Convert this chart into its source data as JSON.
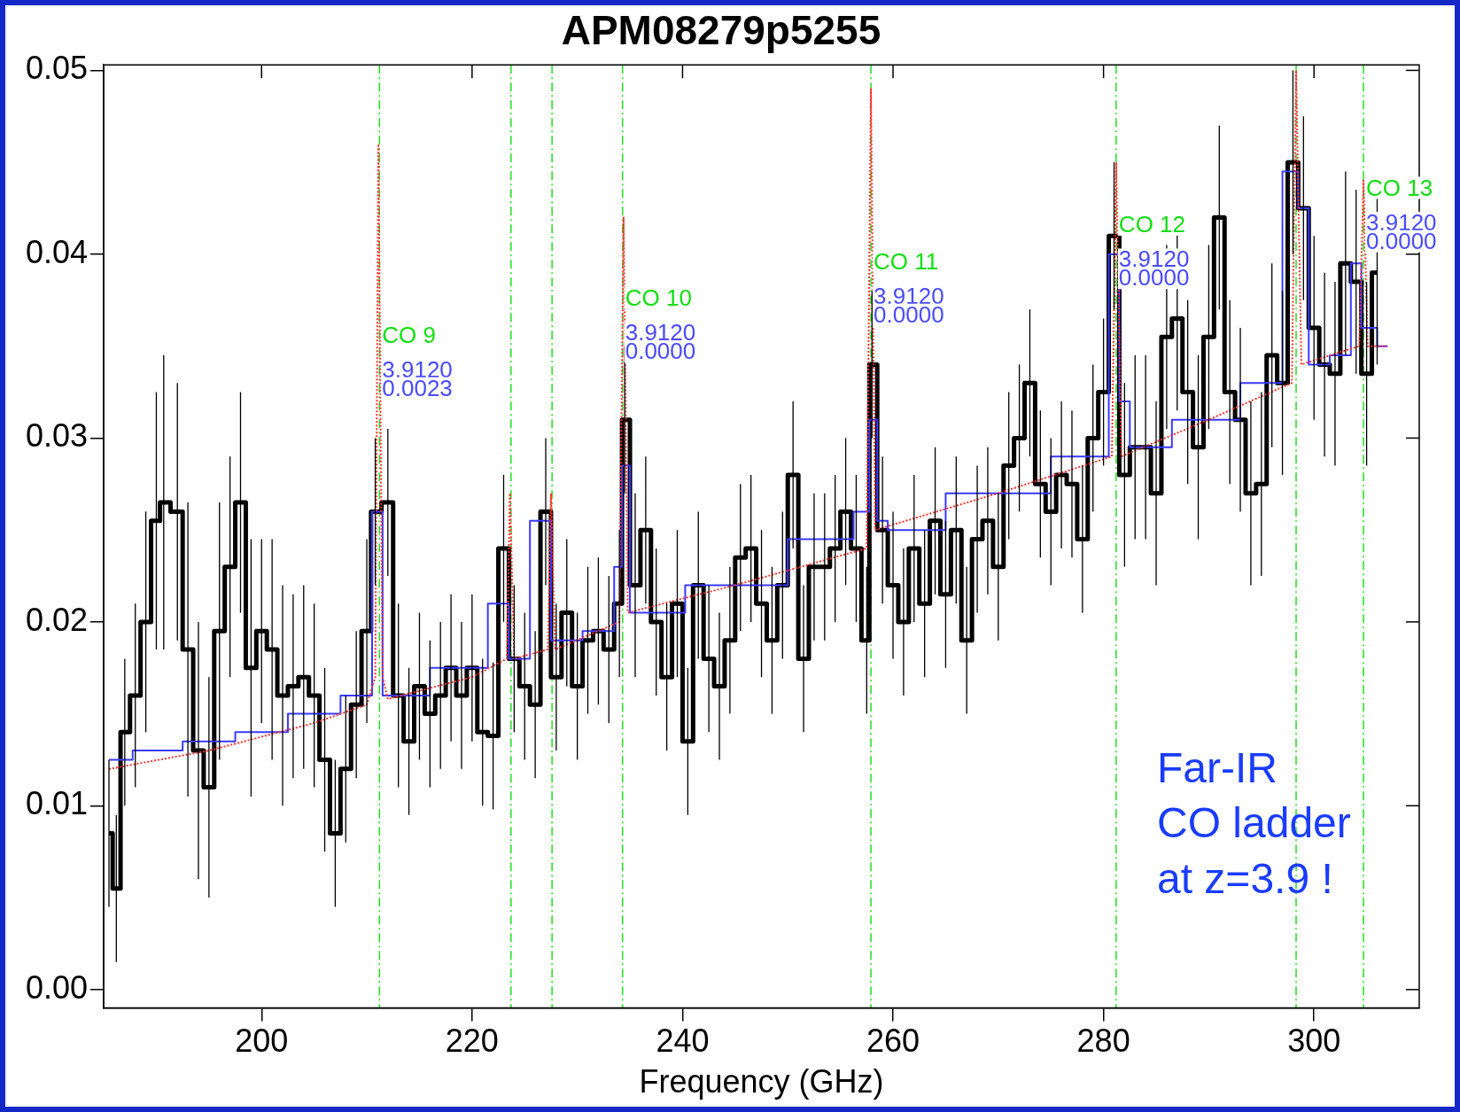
{
  "chart_data": {
    "type": "step",
    "title": "APM08279p5255",
    "xlabel": "Frequency (GHz)",
    "xlim": [
      185,
      310
    ],
    "xticks": [
      200,
      220,
      240,
      260,
      280,
      300
    ],
    "ylim": [
      -0.001,
      0.0503
    ],
    "yticks": [
      {
        "value": 0,
        "label": "0.00"
      },
      {
        "value": 0.01,
        "label": "0.01"
      },
      {
        "value": 0.02,
        "label": "0.02"
      },
      {
        "value": 0.03,
        "label": "0.03"
      },
      {
        "value": 0.04,
        "label": "0.04"
      },
      {
        "value": 0.05,
        "label": "0.05"
      }
    ],
    "grid": false,
    "legend": false,
    "series": [
      {
        "type": "step",
        "color": "#000000",
        "x": [
          185.5,
          186.2,
          187,
          188,
          189,
          190,
          190.7,
          192,
          193,
          194,
          195,
          196,
          197,
          198,
          199,
          200,
          201,
          202,
          203,
          204,
          205,
          206,
          207,
          208,
          209,
          210,
          210.8,
          212,
          213,
          214,
          215,
          216,
          217,
          218,
          219,
          220,
          221,
          222,
          223,
          224,
          225,
          226,
          227,
          228,
          229,
          230,
          231,
          232,
          233,
          234,
          234.5,
          235.5,
          236.5,
          237.5,
          238.5,
          239.5,
          240.5,
          241.5,
          242.5,
          243.5,
          244.5,
          245.5,
          246.5,
          247.5,
          248.5,
          249.5,
          250.5,
          251.5,
          252.5,
          253.5,
          254.5,
          255.5,
          256.5,
          257.5,
          258,
          259,
          260,
          261,
          262,
          263,
          264,
          265,
          266,
          267,
          268,
          269,
          270,
          271,
          272,
          273,
          274,
          275,
          276,
          277,
          278,
          279,
          280,
          281,
          282,
          283,
          284,
          285,
          286,
          287,
          288,
          289,
          290,
          291,
          292,
          293,
          294,
          295,
          296,
          297,
          298,
          299,
          300,
          301,
          302,
          303,
          304,
          305,
          306
        ],
        "values": [
          0.0085,
          0.0055,
          0.014,
          0.016,
          0.02,
          0.0255,
          0.0265,
          0.026,
          0.0185,
          0.013,
          0.011,
          0.0195,
          0.023,
          0.0265,
          0.0175,
          0.0195,
          0.0185,
          0.016,
          0.0165,
          0.017,
          0.016,
          0.0125,
          0.0085,
          0.012,
          0.0155,
          0.0195,
          0.026,
          0.0265,
          0.016,
          0.0135,
          0.0165,
          0.015,
          0.016,
          0.0175,
          0.016,
          0.0175,
          0.014,
          0.0138,
          0.024,
          0.018,
          0.0165,
          0.0155,
          0.026,
          0.017,
          0.0205,
          0.0165,
          0.019,
          0.0195,
          0.0185,
          0.021,
          0.031,
          0.022,
          0.025,
          0.02,
          0.017,
          0.021,
          0.0135,
          0.022,
          0.018,
          0.0165,
          0.019,
          0.0235,
          0.024,
          0.021,
          0.019,
          0.022,
          0.028,
          0.018,
          0.023,
          0.023,
          0.024,
          0.026,
          0.024,
          0.019,
          0.034,
          0.025,
          0.022,
          0.02,
          0.024,
          0.021,
          0.0255,
          0.0215,
          0.025,
          0.019,
          0.0245,
          0.0255,
          0.023,
          0.0285,
          0.03,
          0.033,
          0.0275,
          0.026,
          0.028,
          0.0275,
          0.0245,
          0.03,
          0.0325,
          0.041,
          0.028,
          0.0295,
          0.0295,
          0.027,
          0.0355,
          0.0365,
          0.0325,
          0.0295,
          0.0355,
          0.042,
          0.0325,
          0.031,
          0.027,
          0.0275,
          0.0345,
          0.033,
          0.045,
          0.0425,
          0.036,
          0.034,
          0.0335,
          0.0395,
          0.0385,
          0.0335,
          0.039
        ],
        "errors": [
          0.004,
          0.004,
          0.004,
          0.005,
          0.006,
          0.007,
          0.008,
          0.007,
          0.008,
          0.007,
          0.006,
          0.007,
          0.006,
          0.006,
          0.007,
          0.005,
          0.006,
          0.006,
          0.005,
          0.005,
          0.005,
          0.005,
          0.004,
          0.004,
          0.004,
          0.005,
          0.004,
          0.004,
          0.005,
          0.004,
          0.004,
          0.004,
          0.004,
          0.004,
          0.004,
          0.004,
          0.004,
          0.004,
          0.004,
          0.004,
          0.004,
          0.004,
          0.004,
          0.004,
          0.004,
          0.004,
          0.004,
          0.004,
          0.004,
          0.004,
          0.004,
          0.005,
          0.004,
          0.004,
          0.004,
          0.004,
          0.004,
          0.004,
          0.004,
          0.004,
          0.004,
          0.004,
          0.004,
          0.004,
          0.004,
          0.004,
          0.004,
          0.004,
          0.004,
          0.004,
          0.004,
          0.004,
          0.004,
          0.004,
          0.004,
          0.004,
          0.004,
          0.004,
          0.004,
          0.004,
          0.004,
          0.004,
          0.004,
          0.004,
          0.004,
          0.004,
          0.004,
          0.004,
          0.004,
          0.004,
          0.004,
          0.004,
          0.004,
          0.004,
          0.004,
          0.004,
          0.004,
          0.004,
          0.005,
          0.005,
          0.005,
          0.005,
          0.005,
          0.005,
          0.005,
          0.005,
          0.005,
          0.005,
          0.005,
          0.005,
          0.005,
          0.005,
          0.005,
          0.005,
          0.005,
          0.005,
          0.005,
          0.005,
          0.005,
          0.005,
          0.005,
          0.005,
          0.005
        ]
      },
      {
        "type": "step",
        "color": "#3a3aff",
        "x": [
          185.5,
          190,
          195,
          200,
          205,
          210,
          211,
          212,
          220,
          223,
          224,
          227,
          228,
          233,
          234,
          234.5,
          235.5,
          245,
          255,
          257.5,
          258,
          259,
          260,
          270,
          280,
          281,
          282,
          283,
          290,
          296,
          298,
          299,
          300,
          303,
          304,
          305,
          307
        ],
        "values": [
          0.0125,
          0.013,
          0.0135,
          0.014,
          0.015,
          0.016,
          0.026,
          0.016,
          0.0175,
          0.021,
          0.018,
          0.0255,
          0.019,
          0.0195,
          0.023,
          0.0285,
          0.0205,
          0.022,
          0.0245,
          0.026,
          0.031,
          0.0255,
          0.025,
          0.027,
          0.029,
          0.04,
          0.032,
          0.0295,
          0.031,
          0.033,
          0.0445,
          0.0425,
          0.034,
          0.0345,
          0.0395,
          0.036,
          0.035
        ]
      },
      {
        "type": "line",
        "color": "#ff3030",
        "line_style": "dotted",
        "x": [
          185.5,
          195,
          205,
          210,
          210.8,
          211.1,
          211.5,
          212,
          220,
          223.3,
          223.6,
          224,
          227.2,
          227.5,
          227.9,
          234,
          234.4,
          234.8,
          245,
          257.5,
          257.9,
          258.3,
          270,
          280.8,
          281.2,
          281.7,
          290,
          297.9,
          298.3,
          298.8,
          304.3,
          304.7,
          305.1,
          307
        ],
        "values": [
          0.012,
          0.013,
          0.0145,
          0.0155,
          0.017,
          0.046,
          0.017,
          0.0158,
          0.017,
          0.018,
          0.027,
          0.018,
          0.0185,
          0.027,
          0.0185,
          0.02,
          0.042,
          0.0205,
          0.022,
          0.024,
          0.049,
          0.025,
          0.027,
          0.029,
          0.045,
          0.029,
          0.031,
          0.033,
          0.05,
          0.034,
          0.035,
          0.044,
          0.035,
          0.035
        ]
      }
    ],
    "ref_lines": [
      {
        "axis": "x",
        "value": 211.2,
        "color": "#22dd22",
        "line_style": "dashdot"
      },
      {
        "axis": "x",
        "value": 223.7,
        "color": "#22dd22",
        "line_style": "dashdot"
      },
      {
        "axis": "x",
        "value": 227.6,
        "color": "#22dd22",
        "line_style": "dashdot"
      },
      {
        "axis": "x",
        "value": 234.3,
        "color": "#22dd22",
        "line_style": "dashdot"
      },
      {
        "axis": "x",
        "value": 257.9,
        "color": "#22dd22",
        "line_style": "dashdot"
      },
      {
        "axis": "x",
        "value": 281.2,
        "color": "#22dd22",
        "line_style": "dashdot"
      },
      {
        "axis": "x",
        "value": 298.3,
        "color": "#22dd22",
        "line_style": "dashdot"
      },
      {
        "axis": "x",
        "value": 304.7,
        "color": "#22dd22",
        "line_style": "dashdot"
      }
    ],
    "annotations": [
      {
        "text": "CO 9",
        "x": 211.2,
        "y": 0.0352
      },
      {
        "text": "3.9120",
        "x": 211.2,
        "y": 0.0333
      },
      {
        "text": "0.0023",
        "x": 211.2,
        "y": 0.0323
      },
      {
        "text": "CO 10",
        "x": 234.3,
        "y": 0.0372
      },
      {
        "text": "3.9120",
        "x": 234.3,
        "y": 0.0353
      },
      {
        "text": "0.0000",
        "x": 234.3,
        "y": 0.0343
      },
      {
        "text": "CO 11",
        "x": 257.9,
        "y": 0.0392
      },
      {
        "text": "3.9120",
        "x": 257.9,
        "y": 0.0373
      },
      {
        "text": "0.0000",
        "x": 257.9,
        "y": 0.0363
      },
      {
        "text": "CO 12",
        "x": 281.2,
        "y": 0.0412
      },
      {
        "text": "3.9120",
        "x": 281.2,
        "y": 0.0393
      },
      {
        "text": "0.0000",
        "x": 281.2,
        "y": 0.0383
      },
      {
        "text": "CO 13",
        "x": 304.7,
        "y": 0.0432
      },
      {
        "text": "3.9120",
        "x": 304.7,
        "y": 0.0413
      },
      {
        "text": "0.0000",
        "x": 304.7,
        "y": 0.0403
      },
      "Far-IR\nCO ladder\nat z=3.9 !"
    ]
  }
}
